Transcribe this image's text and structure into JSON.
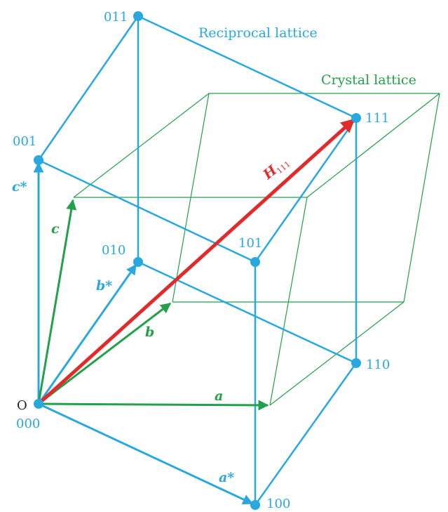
{
  "titles": {
    "reciprocal": "Reciprocal lattice",
    "crystal": "Crystal lattice"
  },
  "origin_label": "O",
  "nodes": {
    "n000": "000",
    "n001": "001",
    "n011": "011",
    "n010": "010",
    "n111": "111",
    "n101": "101",
    "n110": "110",
    "n100": "100"
  },
  "vectors": {
    "a": "a",
    "b": "b",
    "c": "c",
    "a_star": "a*",
    "b_star": "b*",
    "c_star": "c*",
    "h_main": "H",
    "h_sub": "111"
  },
  "colors": {
    "reciprocal": "#29a8df",
    "crystal": "#23a049",
    "h_vector": "#e12b2b",
    "origin": "#222222"
  }
}
